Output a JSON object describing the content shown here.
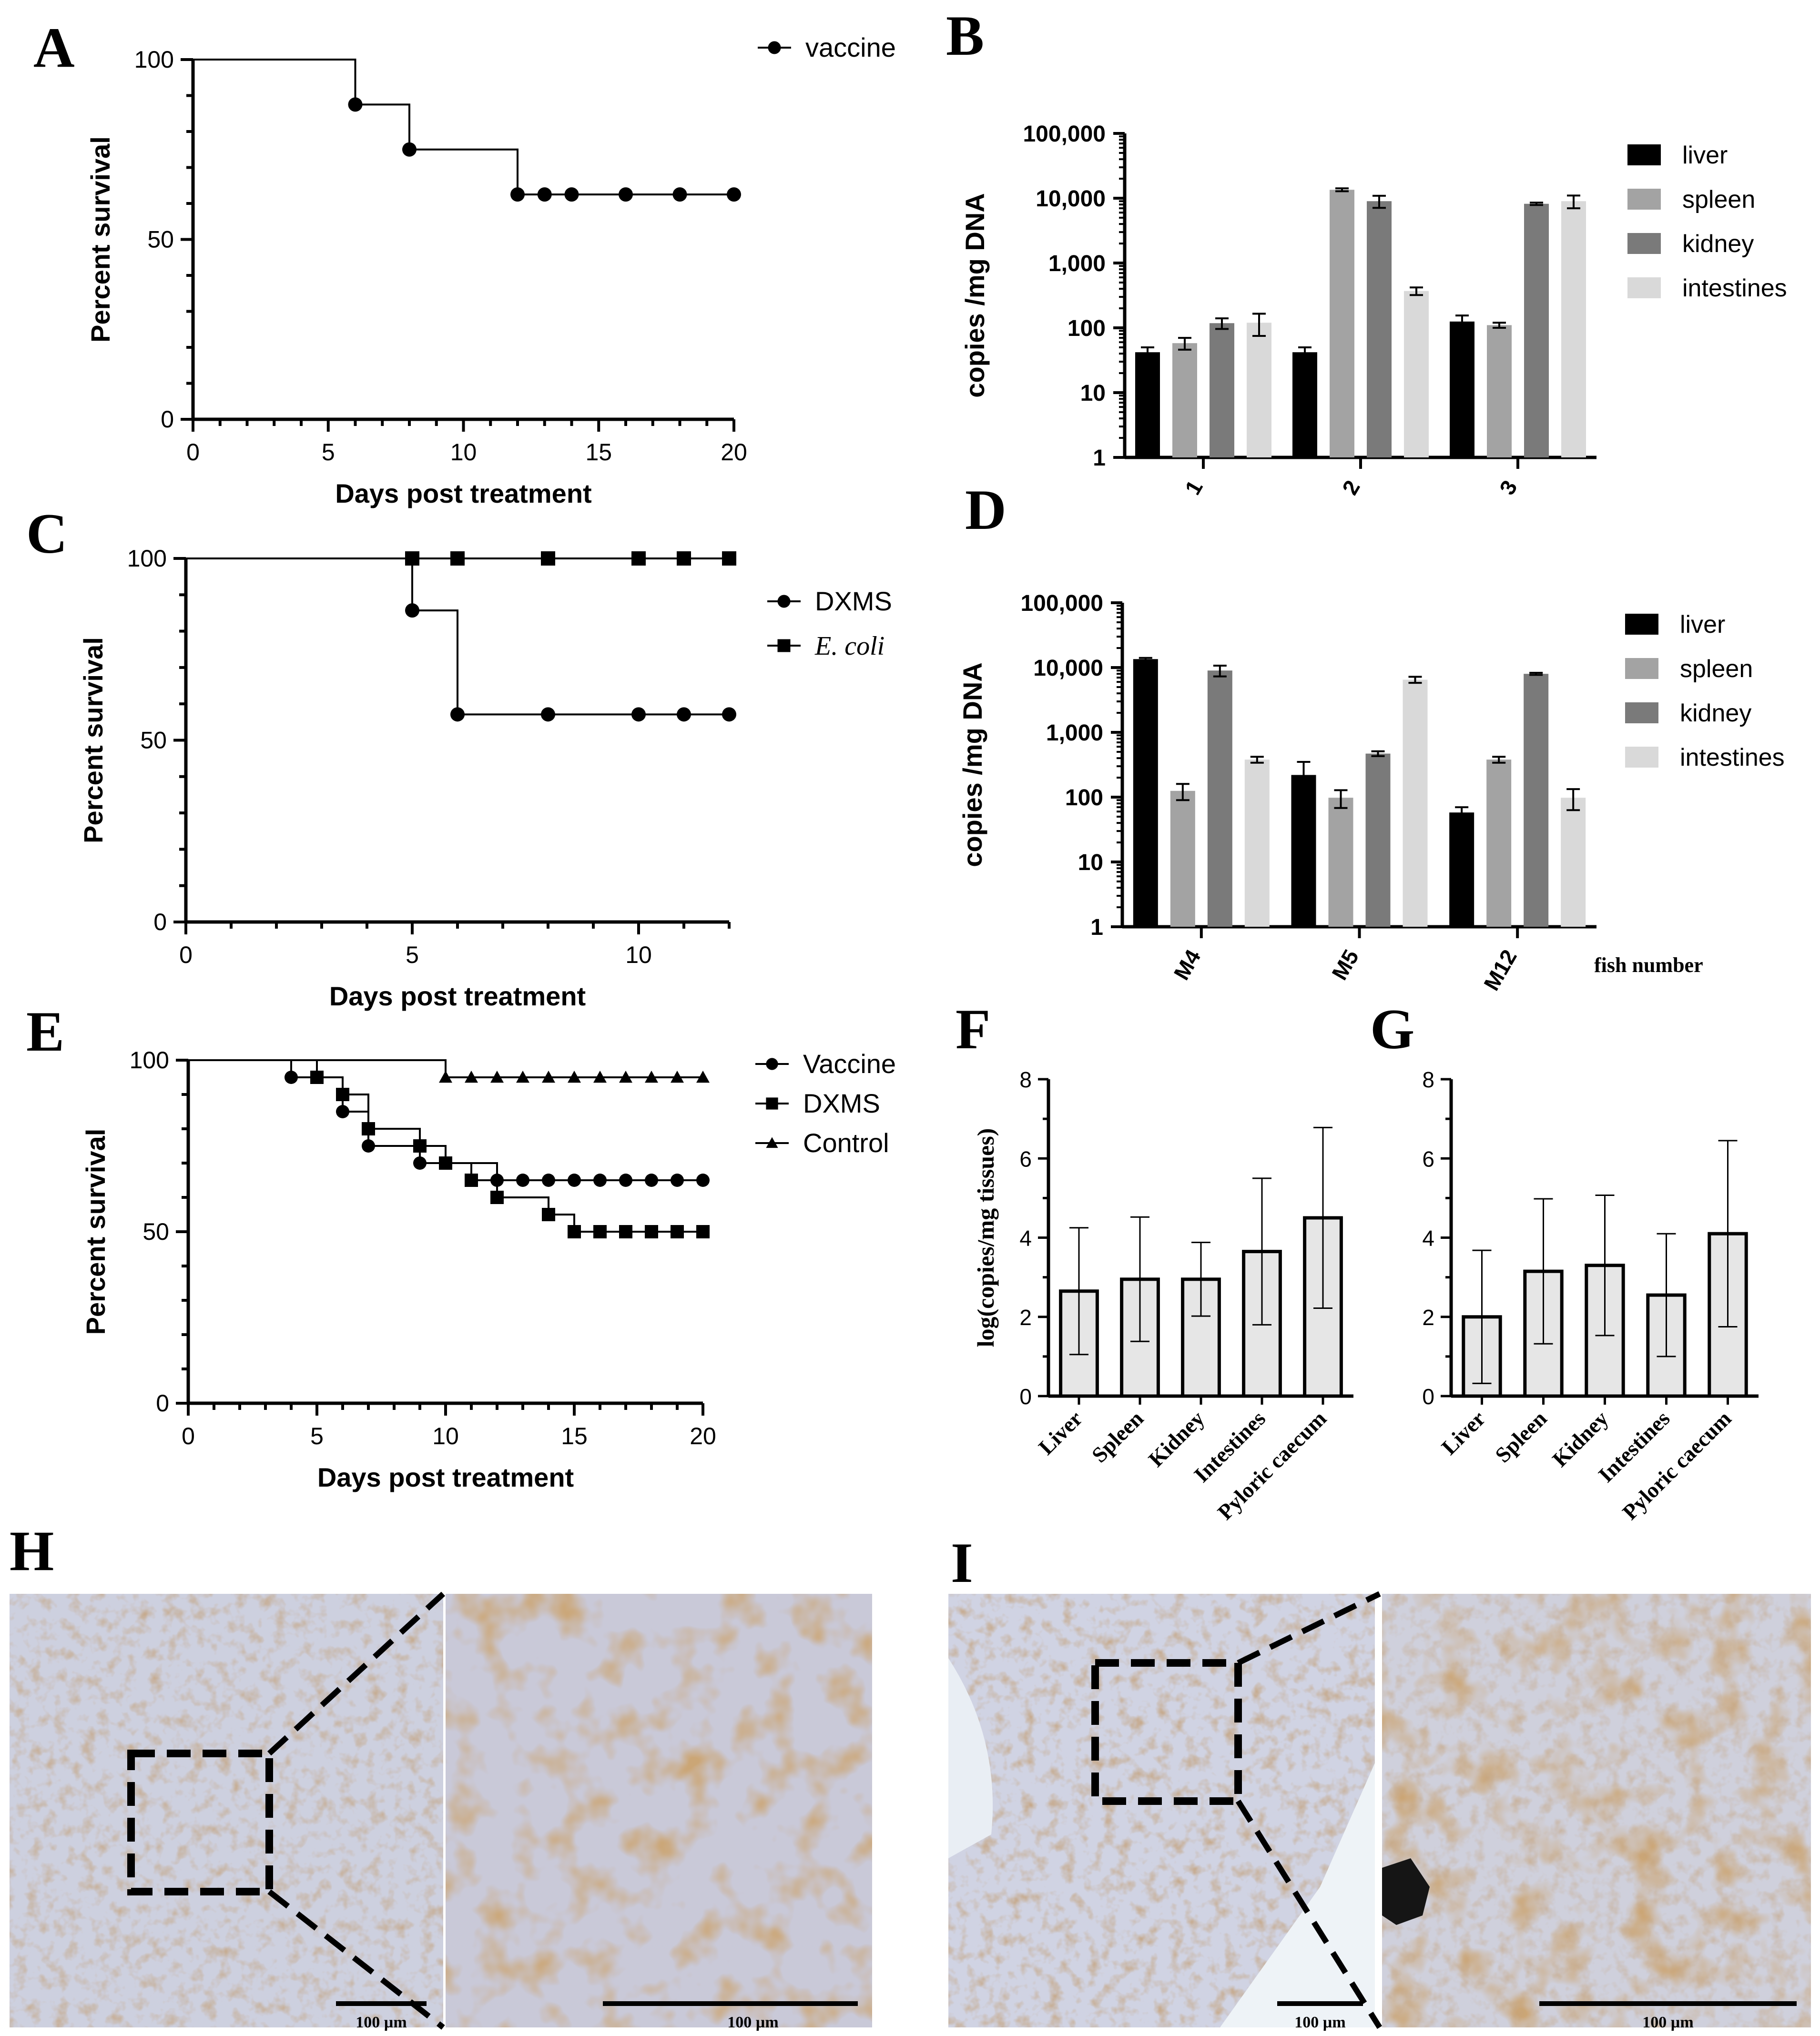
{
  "colors": {
    "liver": "#000000",
    "spleen": "#a3a3a3",
    "kidney": "#7a7a7a",
    "intestines": "#d9d9d9",
    "bar_fill_fg": "#e6e6e6",
    "tissue_bg": "#c9cbdc",
    "stain": "#a0642c"
  },
  "chart_data": [
    {
      "panel": "A",
      "type": "line",
      "step": true,
      "xlabel": "Days post treatment",
      "ylabel": "Percent survival",
      "xlim": [
        0,
        20
      ],
      "ylim": [
        0,
        100
      ],
      "xticks": [
        "0",
        "5",
        "10",
        "15",
        "20"
      ],
      "yticks": [
        "0",
        "50",
        "100"
      ],
      "series": [
        {
          "name": "vaccine",
          "marker": "circle",
          "x": [
            0,
            6,
            8,
            12,
            13,
            14,
            16,
            18,
            20
          ],
          "y": [
            100,
            87.5,
            75,
            62.5,
            62.5,
            62.5,
            62.5,
            62.5,
            62.5
          ],
          "markers_x": [
            6,
            8,
            12,
            13,
            14,
            16,
            18,
            20
          ]
        }
      ]
    },
    {
      "panel": "B",
      "type": "bar",
      "yscale": "log",
      "ylabel": "copies /mg DNA",
      "ylim": [
        1,
        100000
      ],
      "yticks": [
        "1",
        "10",
        "100",
        "1,000",
        "10,000",
        "100,000"
      ],
      "categories": [
        "1",
        "2",
        "3"
      ],
      "series": [
        {
          "name": "liver",
          "values": [
            42,
            42,
            125
          ],
          "errors": [
            8,
            8,
            30
          ]
        },
        {
          "name": "spleen",
          "values": [
            58,
            13500,
            110
          ],
          "errors": [
            12,
            700,
            10
          ]
        },
        {
          "name": "kidney",
          "values": [
            118,
            9000,
            8200
          ],
          "errors": [
            22,
            1900,
            350
          ]
        },
        {
          "name": "intestines",
          "values": [
            120,
            370,
            9000
          ],
          "errors": [
            45,
            50,
            2000
          ]
        }
      ]
    },
    {
      "panel": "C",
      "type": "line",
      "step": true,
      "xlabel": "Days post treatment",
      "ylabel": "Percent survival",
      "xlim": [
        0,
        12
      ],
      "ylim": [
        0,
        100
      ],
      "xticks": [
        "0",
        "5",
        "10"
      ],
      "yticks": [
        "0",
        "50",
        "100"
      ],
      "series": [
        {
          "name": "DXMS",
          "marker": "circle",
          "x": [
            0,
            5,
            6,
            8,
            10,
            11,
            12
          ],
          "y": [
            100,
            85.7,
            57.1,
            57.1,
            57.1,
            57.1,
            57.1
          ],
          "markers_x": [
            5,
            6,
            8,
            10,
            11,
            12
          ]
        },
        {
          "name": "E. coli",
          "marker": "square",
          "italic": true,
          "x": [
            0,
            5,
            6,
            8,
            10,
            11,
            12
          ],
          "y": [
            100,
            100,
            100,
            100,
            100,
            100,
            100
          ],
          "markers_x": [
            5,
            6,
            8,
            10,
            11,
            12
          ]
        }
      ]
    },
    {
      "panel": "D",
      "type": "bar",
      "yscale": "log",
      "ylabel": "copies /mg DNA",
      "xlabel": "fish number",
      "ylim": [
        1,
        100000
      ],
      "yticks": [
        "1",
        "10",
        "100",
        "1,000",
        "10,000",
        "100,000"
      ],
      "categories": [
        "M4",
        "M5",
        "M12"
      ],
      "series": [
        {
          "name": "liver",
          "values": [
            13500,
            220,
            58
          ],
          "errors": [
            600,
            130,
            12
          ]
        },
        {
          "name": "spleen",
          "values": [
            125,
            98,
            380
          ],
          "errors": [
            35,
            30,
            40
          ]
        },
        {
          "name": "kidney",
          "values": [
            9000,
            470,
            8000
          ],
          "errors": [
            1700,
            40,
            300
          ]
        },
        {
          "name": "intestines",
          "values": [
            380,
            6500,
            98
          ],
          "errors": [
            40,
            700,
            35
          ]
        }
      ]
    },
    {
      "panel": "E",
      "type": "line",
      "step": true,
      "xlabel": "Days post treatment",
      "ylabel": "Percent survival",
      "xlim": [
        0,
        20
      ],
      "ylim": [
        0,
        100
      ],
      "xticks": [
        "0",
        "5",
        "10",
        "15",
        "20"
      ],
      "yticks": [
        "0",
        "50",
        "100"
      ],
      "series": [
        {
          "name": "Vaccine",
          "marker": "circle",
          "x": [
            0,
            4,
            6,
            7,
            9,
            12,
            13,
            14,
            15,
            16,
            17,
            18,
            19,
            20
          ],
          "y": [
            100,
            95,
            85,
            75,
            70,
            65,
            65,
            65,
            65,
            65,
            65,
            65,
            65,
            65
          ],
          "markers_x": [
            4,
            6,
            7,
            9,
            10,
            12,
            13,
            14,
            15,
            16,
            17,
            18,
            19,
            20
          ]
        },
        {
          "name": "DXMS",
          "marker": "square",
          "x": [
            0,
            5,
            6,
            7,
            9,
            10,
            11,
            12,
            14,
            15,
            16,
            17,
            18,
            19,
            20
          ],
          "y": [
            100,
            95,
            90,
            80,
            75,
            70,
            65,
            60,
            55,
            50,
            50,
            50,
            50,
            50,
            50
          ],
          "markers_x": [
            5,
            6,
            7,
            9,
            10,
            11,
            12,
            14,
            15,
            16,
            17,
            18,
            19,
            20
          ]
        },
        {
          "name": "Control",
          "marker": "triangle",
          "x": [
            0,
            10,
            11,
            12,
            13,
            14,
            15,
            16,
            17,
            18,
            19,
            20
          ],
          "y": [
            100,
            95,
            95,
            95,
            95,
            95,
            95,
            95,
            95,
            95,
            95,
            95
          ],
          "markers_x": [
            10,
            11,
            12,
            13,
            14,
            15,
            16,
            17,
            18,
            19,
            20
          ]
        }
      ]
    },
    {
      "panel": "F",
      "type": "bar",
      "ylabel": "log(copies/mg tissues)",
      "ylim": [
        0,
        8
      ],
      "yticks": [
        "0",
        "2",
        "4",
        "6",
        "8"
      ],
      "categories": [
        "Liver",
        "Spleen",
        "Kidney",
        "Intestines",
        "Pyloric caecum"
      ],
      "values": [
        2.65,
        2.95,
        2.95,
        3.65,
        4.5
      ],
      "errors": [
        1.6,
        1.57,
        0.93,
        1.85,
        2.28
      ]
    },
    {
      "panel": "G",
      "type": "bar",
      "ylim": [
        0,
        8
      ],
      "yticks": [
        "0",
        "2",
        "4",
        "6",
        "8"
      ],
      "categories": [
        "Liver",
        "Spleen",
        "Kidney",
        "Intestines",
        "Pyloric caecum"
      ],
      "values": [
        2.0,
        3.15,
        3.3,
        2.55,
        4.1
      ],
      "errors": [
        1.68,
        1.83,
        1.77,
        1.55,
        2.35
      ]
    }
  ],
  "panels": {
    "A": "A",
    "B": "B",
    "C": "C",
    "D": "D",
    "E": "E",
    "F": "F",
    "G": "G",
    "H": "H",
    "I": "I"
  },
  "micrographs": {
    "H": {
      "scale_left": "100 µm",
      "scale_right": "100 µm"
    },
    "I": {
      "scale_left": "100 µm",
      "scale_right": "100 µm"
    }
  }
}
